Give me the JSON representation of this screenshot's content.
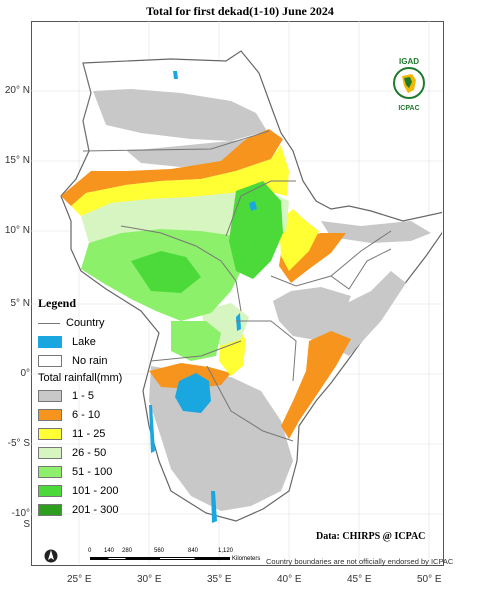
{
  "title": "Total  for first dekad(1-10) June 2024",
  "y_ticks": [
    "20° N",
    "15° N",
    "10° N",
    "5° N",
    "0°",
    "-5° S",
    "-10° S"
  ],
  "x_ticks": [
    "25° E",
    "30° E",
    "35° E",
    "40° E",
    "45° E",
    "50° E"
  ],
  "legend": {
    "title": "Legend",
    "country": "Country",
    "lake": "Lake",
    "norain": "No rain",
    "rain_title": "Total rainfall(mm)",
    "classes": [
      {
        "label": "1 - 5",
        "color": "#c8c8c8"
      },
      {
        "label": "6 - 10",
        "color": "#f7941d"
      },
      {
        "label": "11 - 25",
        "color": "#ffff33"
      },
      {
        "label": "26 - 50",
        "color": "#d6f5c0"
      },
      {
        "label": "51 - 100",
        "color": "#8cf06a"
      },
      {
        "label": "101 - 200",
        "color": "#4cd93a"
      },
      {
        "label": "201 - 300",
        "color": "#2e9e1f"
      }
    ],
    "lake_color": "#1aa7e0"
  },
  "credit": "Data: CHIRPS @ ICPAC",
  "disclaimer": "Country boundaries are not officially endorsed by ICPAC",
  "scale": {
    "labels": [
      "0",
      "140",
      "280",
      "560",
      "840",
      "1,120"
    ],
    "unit": "Kilometers"
  },
  "logo": {
    "top": "IGAD",
    "bottom": "ICPAC"
  }
}
